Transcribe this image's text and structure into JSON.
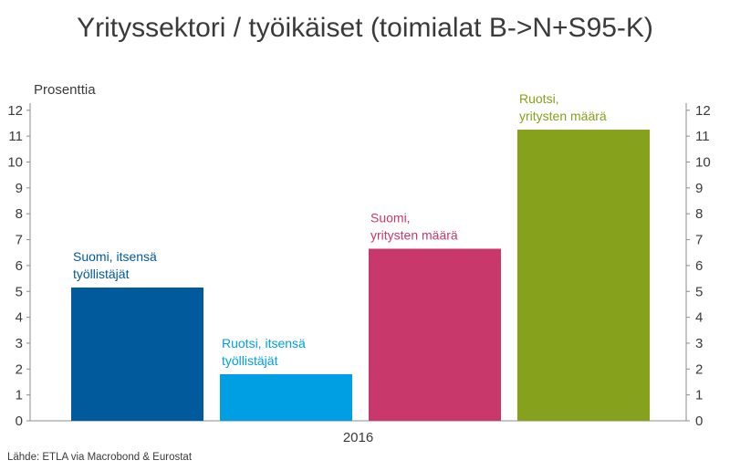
{
  "chart_data": {
    "type": "bar",
    "title": "Yrityssektori / työikäiset (toimialat B->N+S95-K)",
    "ylabel": "Prosenttia",
    "source": "Lähde: ETLA via Macrobond & Eurostat",
    "categories": [
      "2016"
    ],
    "ylim": [
      0,
      12.5
    ],
    "yticks": [
      0,
      1,
      2,
      3,
      4,
      5,
      6,
      7,
      8,
      9,
      10,
      11,
      12
    ],
    "grid": false,
    "secondary_axis": true,
    "legend": "inline",
    "series": [
      {
        "label_lines": [
          "Suomi, itsensä",
          "työllistäjät"
        ],
        "value": 5.15,
        "color": "#005a9c"
      },
      {
        "label_lines": [
          "Ruotsi, itsensä",
          "työllistäjät"
        ],
        "value": 1.8,
        "color": "#009fe3"
      },
      {
        "label_lines": [
          "Suomi,",
          "yritysten määrä"
        ],
        "value": 6.65,
        "color": "#c9386b"
      },
      {
        "label_lines": [
          "Ruotsi,",
          "yritysten määrä"
        ],
        "value": 11.25,
        "color": "#86a11b"
      }
    ]
  }
}
